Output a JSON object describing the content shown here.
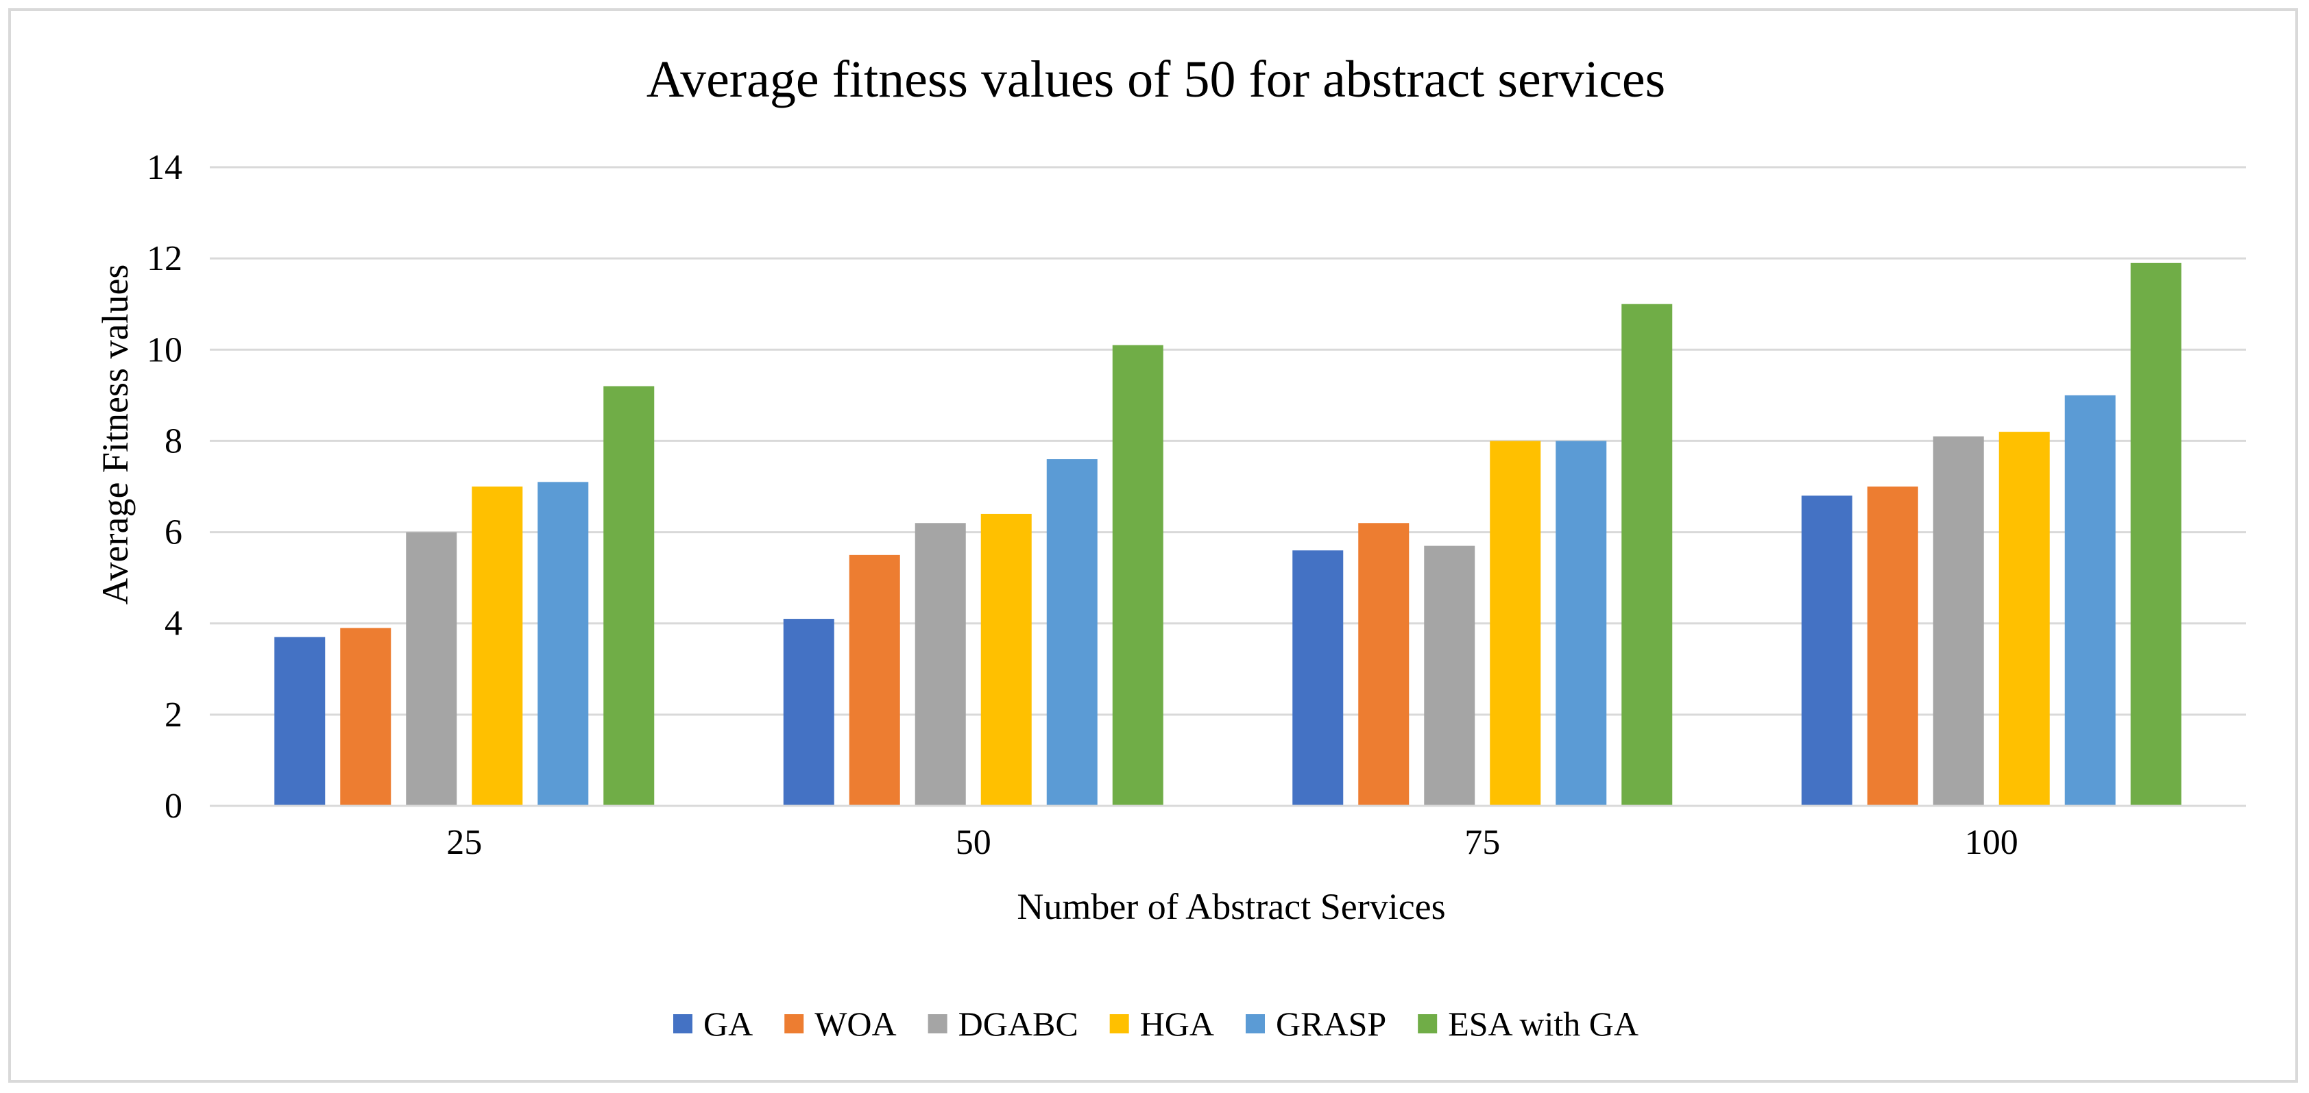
{
  "chart_data": {
    "type": "bar",
    "title": "Average  fitness values of 50 for abstract  services",
    "xlabel": "Number of Abstract Services",
    "ylabel": "Average Fitness values",
    "categories": [
      "25",
      "50",
      "75",
      "100"
    ],
    "ylim": [
      0,
      14
    ],
    "yticks": [
      0,
      2,
      4,
      6,
      8,
      10,
      12,
      14
    ],
    "grid": true,
    "legend_position": "bottom",
    "series": [
      {
        "name": "GA",
        "color": "#4472C4",
        "values": [
          3.7,
          4.1,
          5.6,
          6.8
        ]
      },
      {
        "name": "WOA",
        "color": "#ED7D31",
        "values": [
          3.9,
          5.5,
          6.2,
          7.0
        ]
      },
      {
        "name": "DGABC",
        "color": "#A5A5A5",
        "values": [
          6.0,
          6.2,
          5.7,
          8.1
        ]
      },
      {
        "name": "HGA",
        "color": "#FFC000",
        "values": [
          7.0,
          6.4,
          8.0,
          8.2
        ]
      },
      {
        "name": "GRASP",
        "color": "#5B9BD5",
        "values": [
          7.1,
          7.6,
          8.0,
          9.0
        ]
      },
      {
        "name": "ESA with GA",
        "color": "#70AD47",
        "values": [
          9.2,
          10.1,
          11.0,
          11.9
        ]
      }
    ]
  }
}
